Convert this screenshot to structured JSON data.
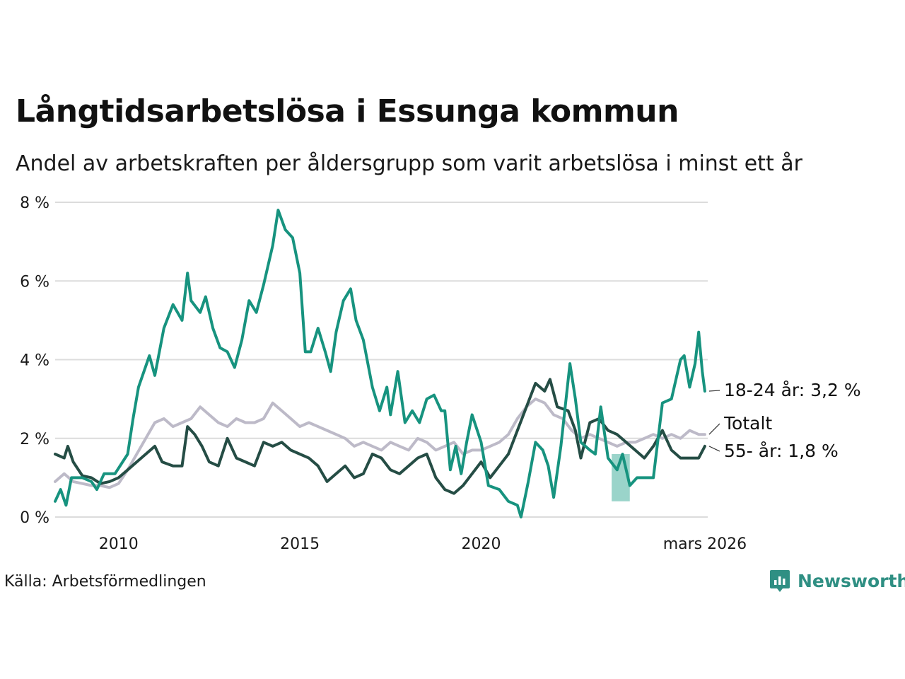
{
  "title": "Långtidsarbetslösa i Essunga kommun",
  "subtitle": "Andel av arbetskraften per åldersgrupp som varit arbetslösa i minst ett år",
  "source": "Källa: Arbetsförmedlingen",
  "brand": "Newsworthy",
  "colors": {
    "youth": "#17937f",
    "senior": "#254d45",
    "total": "#bdbac8",
    "band": "#8fcfc4",
    "grid": "#dcdcdc",
    "brand": "#2f8f83"
  },
  "chart_data": {
    "type": "line",
    "title": "Långtidsarbetslösa i Essunga kommun",
    "ylabel": "",
    "ylim": [
      0,
      8
    ],
    "xlim": [
      2008.25,
      2026.25
    ],
    "y_ticks": [
      0,
      2,
      4,
      6,
      8
    ],
    "y_tick_labels": [
      "0 %",
      "2 %",
      "4 %",
      "6 %",
      "8 %"
    ],
    "x_ticks": [
      2010,
      2015,
      2020,
      2026.17
    ],
    "x_tick_labels": [
      "2010",
      "2015",
      "2020",
      "mars 2026"
    ],
    "band": {
      "x_start": 2023.6,
      "x_end": 2024.1,
      "y_low": 0.4,
      "y_high": 1.6
    },
    "series": [
      {
        "name": "Totalt",
        "label": "Totalt",
        "color_key": "total",
        "points": [
          [
            2008.25,
            0.9
          ],
          [
            2008.5,
            1.1
          ],
          [
            2008.75,
            0.9
          ],
          [
            2009.0,
            0.85
          ],
          [
            2009.25,
            0.8
          ],
          [
            2009.5,
            0.8
          ],
          [
            2009.75,
            0.75
          ],
          [
            2010.0,
            0.85
          ],
          [
            2010.25,
            1.2
          ],
          [
            2010.5,
            1.6
          ],
          [
            2010.75,
            2.0
          ],
          [
            2011.0,
            2.4
          ],
          [
            2011.25,
            2.5
          ],
          [
            2011.5,
            2.3
          ],
          [
            2011.75,
            2.4
          ],
          [
            2012.0,
            2.5
          ],
          [
            2012.25,
            2.8
          ],
          [
            2012.5,
            2.6
          ],
          [
            2012.75,
            2.4
          ],
          [
            2013.0,
            2.3
          ],
          [
            2013.25,
            2.5
          ],
          [
            2013.5,
            2.4
          ],
          [
            2013.75,
            2.4
          ],
          [
            2014.0,
            2.5
          ],
          [
            2014.25,
            2.9
          ],
          [
            2014.5,
            2.7
          ],
          [
            2014.75,
            2.5
          ],
          [
            2015.0,
            2.3
          ],
          [
            2015.25,
            2.4
          ],
          [
            2015.5,
            2.3
          ],
          [
            2015.75,
            2.2
          ],
          [
            2016.0,
            2.1
          ],
          [
            2016.25,
            2.0
          ],
          [
            2016.5,
            1.8
          ],
          [
            2016.75,
            1.9
          ],
          [
            2017.0,
            1.8
          ],
          [
            2017.25,
            1.7
          ],
          [
            2017.5,
            1.9
          ],
          [
            2017.75,
            1.8
          ],
          [
            2018.0,
            1.7
          ],
          [
            2018.25,
            2.0
          ],
          [
            2018.5,
            1.9
          ],
          [
            2018.75,
            1.7
          ],
          [
            2019.0,
            1.8
          ],
          [
            2019.25,
            1.9
          ],
          [
            2019.5,
            1.6
          ],
          [
            2019.75,
            1.7
          ],
          [
            2020.0,
            1.7
          ],
          [
            2020.25,
            1.8
          ],
          [
            2020.5,
            1.9
          ],
          [
            2020.75,
            2.1
          ],
          [
            2021.0,
            2.5
          ],
          [
            2021.25,
            2.8
          ],
          [
            2021.5,
            3.0
          ],
          [
            2021.75,
            2.9
          ],
          [
            2022.0,
            2.6
          ],
          [
            2022.25,
            2.5
          ],
          [
            2022.5,
            2.2
          ],
          [
            2022.75,
            2.0
          ],
          [
            2023.0,
            2.1
          ],
          [
            2023.25,
            2.0
          ],
          [
            2023.5,
            1.9
          ],
          [
            2023.75,
            1.8
          ],
          [
            2024.0,
            1.9
          ],
          [
            2024.25,
            1.9
          ],
          [
            2024.5,
            2.0
          ],
          [
            2024.75,
            2.1
          ],
          [
            2025.0,
            2.0
          ],
          [
            2025.25,
            2.1
          ],
          [
            2025.5,
            2.0
          ],
          [
            2025.75,
            2.2
          ],
          [
            2026.0,
            2.1
          ],
          [
            2026.17,
            2.1
          ]
        ]
      },
      {
        "name": "55- år",
        "label": "55- år: 1,8 %",
        "color_key": "senior",
        "points": [
          [
            2008.25,
            1.6
          ],
          [
            2008.5,
            1.5
          ],
          [
            2008.6,
            1.8
          ],
          [
            2008.75,
            1.4
          ],
          [
            2009.0,
            1.05
          ],
          [
            2009.25,
            1.0
          ],
          [
            2009.5,
            0.85
          ],
          [
            2009.75,
            0.9
          ],
          [
            2010.0,
            1.0
          ],
          [
            2010.25,
            1.2
          ],
          [
            2010.5,
            1.4
          ],
          [
            2010.75,
            1.6
          ],
          [
            2011.0,
            1.8
          ],
          [
            2011.2,
            1.4
          ],
          [
            2011.5,
            1.3
          ],
          [
            2011.75,
            1.3
          ],
          [
            2011.9,
            2.3
          ],
          [
            2012.1,
            2.1
          ],
          [
            2012.3,
            1.8
          ],
          [
            2012.5,
            1.4
          ],
          [
            2012.75,
            1.3
          ],
          [
            2013.0,
            2.0
          ],
          [
            2013.25,
            1.5
          ],
          [
            2013.5,
            1.4
          ],
          [
            2013.75,
            1.3
          ],
          [
            2014.0,
            1.9
          ],
          [
            2014.25,
            1.8
          ],
          [
            2014.5,
            1.9
          ],
          [
            2014.75,
            1.7
          ],
          [
            2015.0,
            1.6
          ],
          [
            2015.25,
            1.5
          ],
          [
            2015.5,
            1.3
          ],
          [
            2015.75,
            0.9
          ],
          [
            2016.0,
            1.1
          ],
          [
            2016.25,
            1.3
          ],
          [
            2016.5,
            1.0
          ],
          [
            2016.75,
            1.1
          ],
          [
            2017.0,
            1.6
          ],
          [
            2017.25,
            1.5
          ],
          [
            2017.5,
            1.2
          ],
          [
            2017.75,
            1.1
          ],
          [
            2018.0,
            1.3
          ],
          [
            2018.25,
            1.5
          ],
          [
            2018.5,
            1.6
          ],
          [
            2018.75,
            1.0
          ],
          [
            2019.0,
            0.7
          ],
          [
            2019.25,
            0.6
          ],
          [
            2019.5,
            0.8
          ],
          [
            2019.75,
            1.1
          ],
          [
            2020.0,
            1.4
          ],
          [
            2020.25,
            1.0
          ],
          [
            2020.5,
            1.3
          ],
          [
            2020.75,
            1.6
          ],
          [
            2021.0,
            2.2
          ],
          [
            2021.25,
            2.8
          ],
          [
            2021.5,
            3.4
          ],
          [
            2021.75,
            3.2
          ],
          [
            2021.9,
            3.5
          ],
          [
            2022.1,
            2.8
          ],
          [
            2022.4,
            2.7
          ],
          [
            2022.6,
            2.2
          ],
          [
            2022.75,
            1.5
          ],
          [
            2023.0,
            2.4
          ],
          [
            2023.25,
            2.5
          ],
          [
            2023.5,
            2.2
          ],
          [
            2023.75,
            2.1
          ],
          [
            2024.0,
            1.9
          ],
          [
            2024.25,
            1.7
          ],
          [
            2024.5,
            1.5
          ],
          [
            2024.75,
            1.8
          ],
          [
            2025.0,
            2.2
          ],
          [
            2025.25,
            1.7
          ],
          [
            2025.5,
            1.5
          ],
          [
            2025.75,
            1.5
          ],
          [
            2026.0,
            1.5
          ],
          [
            2026.17,
            1.8
          ]
        ]
      },
      {
        "name": "18-24 år",
        "label": "18-24 år: 3,2 %",
        "color_key": "youth",
        "points": [
          [
            2008.25,
            0.4
          ],
          [
            2008.4,
            0.7
          ],
          [
            2008.55,
            0.3
          ],
          [
            2008.7,
            1.0
          ],
          [
            2009.0,
            1.0
          ],
          [
            2009.25,
            0.9
          ],
          [
            2009.4,
            0.7
          ],
          [
            2009.6,
            1.1
          ],
          [
            2009.9,
            1.1
          ],
          [
            2010.25,
            1.6
          ],
          [
            2010.4,
            2.5
          ],
          [
            2010.55,
            3.3
          ],
          [
            2010.7,
            3.7
          ],
          [
            2010.85,
            4.1
          ],
          [
            2011.0,
            3.6
          ],
          [
            2011.25,
            4.8
          ],
          [
            2011.5,
            5.4
          ],
          [
            2011.75,
            5.0
          ],
          [
            2011.9,
            6.2
          ],
          [
            2012.0,
            5.5
          ],
          [
            2012.25,
            5.2
          ],
          [
            2012.4,
            5.6
          ],
          [
            2012.6,
            4.8
          ],
          [
            2012.8,
            4.3
          ],
          [
            2013.0,
            4.2
          ],
          [
            2013.2,
            3.8
          ],
          [
            2013.4,
            4.5
          ],
          [
            2013.6,
            5.5
          ],
          [
            2013.8,
            5.2
          ],
          [
            2014.0,
            5.9
          ],
          [
            2014.25,
            6.9
          ],
          [
            2014.4,
            7.8
          ],
          [
            2014.6,
            7.3
          ],
          [
            2014.8,
            7.1
          ],
          [
            2015.0,
            6.2
          ],
          [
            2015.15,
            4.2
          ],
          [
            2015.3,
            4.2
          ],
          [
            2015.5,
            4.8
          ],
          [
            2015.7,
            4.2
          ],
          [
            2015.85,
            3.7
          ],
          [
            2016.0,
            4.7
          ],
          [
            2016.2,
            5.5
          ],
          [
            2016.4,
            5.8
          ],
          [
            2016.55,
            5.0
          ],
          [
            2016.75,
            4.5
          ],
          [
            2017.0,
            3.3
          ],
          [
            2017.2,
            2.7
          ],
          [
            2017.4,
            3.3
          ],
          [
            2017.5,
            2.6
          ],
          [
            2017.7,
            3.7
          ],
          [
            2017.9,
            2.4
          ],
          [
            2018.1,
            2.7
          ],
          [
            2018.3,
            2.4
          ],
          [
            2018.5,
            3.0
          ],
          [
            2018.7,
            3.1
          ],
          [
            2018.9,
            2.7
          ],
          [
            2019.0,
            2.7
          ],
          [
            2019.15,
            1.2
          ],
          [
            2019.3,
            1.8
          ],
          [
            2019.45,
            1.1
          ],
          [
            2019.6,
            1.9
          ],
          [
            2019.75,
            2.6
          ],
          [
            2020.0,
            1.9
          ],
          [
            2020.2,
            0.8
          ],
          [
            2020.5,
            0.7
          ],
          [
            2020.75,
            0.4
          ],
          [
            2021.0,
            0.3
          ],
          [
            2021.1,
            0.0
          ],
          [
            2021.3,
            0.9
          ],
          [
            2021.5,
            1.9
          ],
          [
            2021.7,
            1.7
          ],
          [
            2021.85,
            1.3
          ],
          [
            2022.0,
            0.5
          ],
          [
            2022.2,
            1.8
          ],
          [
            2022.45,
            3.9
          ],
          [
            2022.6,
            3.0
          ],
          [
            2022.75,
            1.9
          ],
          [
            2023.0,
            1.7
          ],
          [
            2023.15,
            1.6
          ],
          [
            2023.3,
            2.8
          ],
          [
            2023.5,
            1.5
          ],
          [
            2023.75,
            1.2
          ],
          [
            2023.9,
            1.6
          ],
          [
            2024.1,
            0.8
          ],
          [
            2024.3,
            1.0
          ],
          [
            2024.5,
            1.0
          ],
          [
            2024.75,
            1.0
          ],
          [
            2025.0,
            2.9
          ],
          [
            2025.25,
            3.0
          ],
          [
            2025.5,
            4.0
          ],
          [
            2025.6,
            4.1
          ],
          [
            2025.75,
            3.3
          ],
          [
            2025.9,
            3.9
          ],
          [
            2026.0,
            4.7
          ],
          [
            2026.1,
            3.7
          ],
          [
            2026.17,
            3.2
          ]
        ]
      }
    ]
  }
}
